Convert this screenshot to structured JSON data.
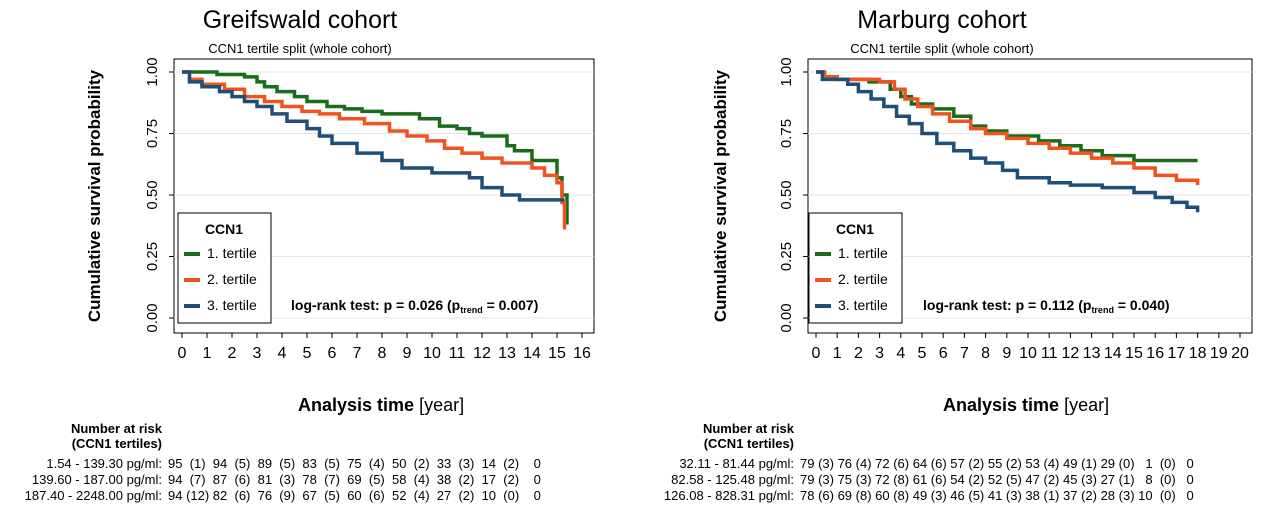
{
  "chart_data": [
    {
      "type": "line",
      "title": "Greifswald cohort",
      "subtitle": "CCN1 tertile split (whole cohort)",
      "xlabel_bold": "Analysis time",
      "xlabel_unit": "[year]",
      "ylabel": "Cumulative survival probability",
      "xlim": [
        0,
        16
      ],
      "ylim": [
        0,
        1
      ],
      "xticks": [
        "0",
        "1",
        "2",
        "3",
        "4",
        "5",
        "6",
        "7",
        "8",
        "9",
        "10",
        "11",
        "12",
        "13",
        "14",
        "15",
        "16"
      ],
      "yticks": [
        "0.00",
        "0.25",
        "0.50",
        "0.75",
        "1.00"
      ],
      "grid": true,
      "legend": {
        "title": "CCN1",
        "position": "bottom-left",
        "entries": [
          "1. tertile",
          "2. tertile",
          "3. tertile"
        ]
      },
      "annotation": {
        "text": "log-rank test: p = 0.026 (p",
        "sub": "trend",
        "end": " = 0.007)"
      },
      "series": [
        {
          "name": "1. tertile",
          "color": "#1a6b1a",
          "x": [
            0,
            0.3,
            1.4,
            2.5,
            3.0,
            3.3,
            3.8,
            4.5,
            5.0,
            5.8,
            6.5,
            7.2,
            8.0,
            9.5,
            10.3,
            11.0,
            11.5,
            12.0,
            13.0,
            13.3,
            14.0,
            15.0,
            15.2,
            15.4
          ],
          "y": [
            1.0,
            1.0,
            0.99,
            0.98,
            0.96,
            0.94,
            0.92,
            0.9,
            0.88,
            0.86,
            0.85,
            0.84,
            0.83,
            0.81,
            0.78,
            0.77,
            0.75,
            0.74,
            0.7,
            0.68,
            0.64,
            0.57,
            0.5,
            0.38
          ]
        },
        {
          "name": "2. tertile",
          "color": "#f0531e",
          "x": [
            0,
            0.3,
            0.8,
            1.7,
            2.5,
            3.3,
            4.0,
            4.8,
            5.5,
            6.3,
            7.3,
            8.3,
            9.0,
            9.8,
            10.5,
            11.2,
            12.0,
            12.8,
            14.0,
            14.5,
            15.0,
            15.2,
            15.3
          ],
          "y": [
            1.0,
            0.97,
            0.95,
            0.93,
            0.9,
            0.88,
            0.86,
            0.84,
            0.83,
            0.81,
            0.79,
            0.76,
            0.74,
            0.72,
            0.69,
            0.67,
            0.65,
            0.63,
            0.61,
            0.58,
            0.55,
            0.47,
            0.36
          ]
        },
        {
          "name": "3. tertile",
          "color": "#1f4e79",
          "x": [
            0,
            0.3,
            0.8,
            1.5,
            2.0,
            2.5,
            3.0,
            3.6,
            4.2,
            5.0,
            5.5,
            6.0,
            7.0,
            8.0,
            8.8,
            10.0,
            11.5,
            12.0,
            12.8,
            13.5,
            15.3
          ],
          "y": [
            1.0,
            0.96,
            0.94,
            0.92,
            0.9,
            0.88,
            0.86,
            0.83,
            0.8,
            0.77,
            0.74,
            0.71,
            0.67,
            0.64,
            0.61,
            0.59,
            0.57,
            0.53,
            0.5,
            0.48,
            0.48
          ]
        }
      ]
    },
    {
      "type": "line",
      "title": "Marburg cohort",
      "subtitle": "CCN1 tertile split (whole cohort)",
      "xlabel_bold": "Analysis time",
      "xlabel_unit": "[year]",
      "ylabel": "Cumulative survival probability",
      "xlim": [
        0,
        20
      ],
      "ylim": [
        0,
        1
      ],
      "xticks": [
        "0",
        "1",
        "2",
        "3",
        "4",
        "5",
        "6",
        "7",
        "8",
        "9",
        "10",
        "11",
        "12",
        "13",
        "14",
        "15",
        "16",
        "17",
        "18",
        "19",
        "20"
      ],
      "yticks": [
        "0.00",
        "0.25",
        "0.50",
        "0.75",
        "1.00"
      ],
      "grid": true,
      "legend": {
        "title": "CCN1",
        "position": "bottom-left",
        "entries": [
          "1. tertile",
          "2. tertile",
          "3. tertile"
        ]
      },
      "annotation": {
        "text": "log-rank test: p = 0.112 (p",
        "sub": "trend",
        "end": " = 0.040)"
      },
      "series": [
        {
          "name": "1. tertile",
          "color": "#1a6b1a",
          "x": [
            0,
            0.4,
            1.0,
            2.5,
            3.5,
            4.0,
            4.5,
            5.5,
            6.5,
            7.3,
            8.0,
            9.0,
            10.5,
            11.5,
            12.5,
            13.5,
            15.0,
            18.0
          ],
          "y": [
            1.0,
            0.98,
            0.97,
            0.96,
            0.93,
            0.9,
            0.87,
            0.85,
            0.82,
            0.78,
            0.76,
            0.74,
            0.72,
            0.7,
            0.68,
            0.66,
            0.64,
            0.64
          ]
        },
        {
          "name": "2. tertile",
          "color": "#f0531e",
          "x": [
            0,
            0.4,
            1.0,
            3.0,
            3.7,
            4.2,
            4.8,
            5.5,
            6.3,
            7.3,
            8.0,
            9.0,
            10.0,
            11.0,
            12.0,
            13.0,
            14.0,
            15.0,
            16.0,
            17.0,
            18.0
          ],
          "y": [
            1.0,
            0.98,
            0.97,
            0.96,
            0.93,
            0.89,
            0.86,
            0.83,
            0.8,
            0.77,
            0.75,
            0.73,
            0.71,
            0.69,
            0.67,
            0.65,
            0.63,
            0.61,
            0.58,
            0.56,
            0.54
          ]
        },
        {
          "name": "3. tertile",
          "color": "#1f4e79",
          "x": [
            0,
            0.3,
            1.5,
            2.0,
            2.6,
            3.2,
            3.8,
            4.4,
            5.0,
            5.7,
            6.5,
            7.3,
            8.0,
            8.8,
            9.5,
            11.0,
            12.0,
            13.5,
            15.0,
            16.0,
            16.8,
            17.5,
            18.0
          ],
          "y": [
            1.0,
            0.97,
            0.95,
            0.92,
            0.89,
            0.86,
            0.82,
            0.79,
            0.75,
            0.71,
            0.68,
            0.65,
            0.63,
            0.6,
            0.57,
            0.55,
            0.54,
            0.53,
            0.51,
            0.49,
            0.47,
            0.45,
            0.43
          ]
        }
      ]
    }
  ],
  "risk_tables": [
    {
      "header_line1": "Number at risk",
      "header_line2": "(CCN1 tertiles)",
      "rows": [
        {
          "label": "1.54 - 139.30 pg/ml:",
          "values": "95  (1)  94  (5)  89  (5)  83  (5)  75  (4)  50  (2)  33  (3)  14  (2)    0"
        },
        {
          "label": "139.60 - 187.00 pg/ml:",
          "values": "94  (7)  87  (6)  81  (3)  78  (7)  69  (5)  58  (4)  38  (2)  17  (2)    0"
        },
        {
          "label": "187.40 - 2248.00 pg/ml:",
          "values": "94 (12) 82  (6)  76  (9)  67  (5)  60  (6)  52  (4)  27  (2)  10  (0)    0"
        }
      ]
    },
    {
      "header_line1": "Number at risk",
      "header_line2": "(CCN1 tertiles)",
      "rows": [
        {
          "label": "32.11 - 81.44 pg/ml:",
          "values": "79 (3) 76 (4) 72 (6) 64 (6) 57 (2) 55 (2) 53 (4) 49 (1) 29 (0)   1  (0)   0"
        },
        {
          "label": "82.58 - 125.48 pg/ml:",
          "values": "79 (3) 75 (3) 72 (8) 61 (6) 54 (2) 52 (5) 47 (2) 45 (3) 27 (1)   8  (0)   0"
        },
        {
          "label": "126.08 - 828.31 pg/ml:",
          "values": "78 (6) 69 (8) 60 (8) 49 (3) 46 (5) 41 (3) 38 (1) 37 (2) 28 (3) 10  (0)   0"
        }
      ]
    }
  ]
}
